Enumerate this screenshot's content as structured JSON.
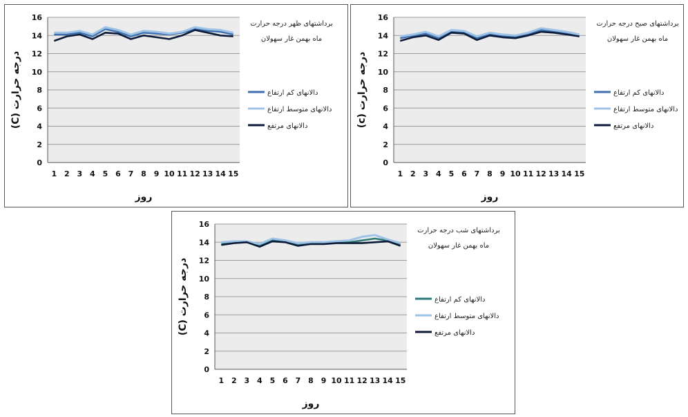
{
  "chart_data": [
    {
      "type": "line",
      "title_lines": [
        "برداشتهای ظهر درجه حرارت",
        "ماه بهمن غار سهولان"
      ],
      "xlabel": "روز",
      "ylabel": "(C) درجه حرارت",
      "ylim": [
        0,
        16
      ],
      "yticks": [
        0,
        2,
        4,
        6,
        8,
        10,
        12,
        14,
        16
      ],
      "categories": [
        "1",
        "2",
        "3",
        "4",
        "5",
        "6",
        "7",
        "8",
        "9",
        "10",
        "11",
        "12",
        "13",
        "14",
        "15"
      ],
      "grid": true,
      "legend_position": "right",
      "series": [
        {
          "name": "دالانهای کم ارتفاع",
          "color": "#3d6fae",
          "values": [
            14.1,
            14.1,
            14.3,
            13.9,
            14.7,
            14.4,
            13.9,
            14.3,
            14.2,
            14.1,
            14.3,
            14.7,
            14.5,
            14.4,
            14.1
          ]
        },
        {
          "name": "دالانهای متوسط ارتفاع",
          "color": "#9fc3e6",
          "values": [
            14.3,
            14.3,
            14.5,
            14.1,
            14.9,
            14.6,
            14.1,
            14.5,
            14.4,
            14.2,
            14.4,
            14.9,
            14.7,
            14.6,
            14.3
          ]
        },
        {
          "name": "دالانهای مرتفع",
          "color": "#0b1a38",
          "values": [
            13.4,
            13.9,
            14.1,
            13.6,
            14.3,
            14.2,
            13.6,
            14.0,
            13.8,
            13.6,
            14.0,
            14.6,
            14.3,
            14.0,
            13.9
          ]
        }
      ]
    },
    {
      "type": "line",
      "title_lines": [
        "برداشتهای صبح درجه حرارت",
        "ماه بهمن غار سهولان"
      ],
      "xlabel": "روز",
      "ylabel": "(c) درجه حرارت",
      "ylim": [
        0,
        16
      ],
      "yticks": [
        0,
        2,
        4,
        6,
        8,
        10,
        12,
        14,
        16
      ],
      "categories": [
        "1",
        "2",
        "3",
        "4",
        "5",
        "6",
        "7",
        "8",
        "9",
        "10",
        "11",
        "12",
        "13",
        "14",
        "15"
      ],
      "grid": true,
      "legend_position": "right",
      "series": [
        {
          "name": "دالانهای کم ارتفاع",
          "color": "#3d6fae",
          "values": [
            13.7,
            14.0,
            14.2,
            13.7,
            14.4,
            14.3,
            13.7,
            14.1,
            13.9,
            13.8,
            14.1,
            14.6,
            14.4,
            14.2,
            13.9
          ]
        },
        {
          "name": "دالانهای متوسط ارتفاع",
          "color": "#9fc3e6",
          "values": [
            13.9,
            14.1,
            14.4,
            13.9,
            14.6,
            14.5,
            13.9,
            14.3,
            14.1,
            14.0,
            14.3,
            14.8,
            14.6,
            14.4,
            14.1
          ]
        },
        {
          "name": "دالانهای مرتفع",
          "color": "#0b1a38",
          "values": [
            13.4,
            13.8,
            14.0,
            13.5,
            14.3,
            14.2,
            13.5,
            14.0,
            13.8,
            13.7,
            14.0,
            14.4,
            14.3,
            14.1,
            13.9
          ]
        }
      ]
    },
    {
      "type": "line",
      "title_lines": [
        "برداشتهای شب درجه حرارت",
        "ماه بهمن غار سهولان"
      ],
      "xlabel": "روز",
      "ylabel": "(C) درجه حرارت",
      "ylim": [
        0,
        16
      ],
      "yticks": [
        0,
        2,
        4,
        6,
        8,
        10,
        12,
        14,
        16
      ],
      "categories": [
        "1",
        "2",
        "3",
        "4",
        "5",
        "6",
        "7",
        "8",
        "9",
        "10",
        "11",
        "12",
        "13",
        "14",
        "15"
      ],
      "grid": true,
      "legend_position": "right",
      "series": [
        {
          "name": "دالانهای کم ارتفاع",
          "color": "#2a7a78",
          "values": [
            13.9,
            14.0,
            14.0,
            13.7,
            14.2,
            14.1,
            13.8,
            13.9,
            13.9,
            14.0,
            14.0,
            14.2,
            14.4,
            14.2,
            13.8
          ]
        },
        {
          "name": "دالانهای متوسط ارتفاع",
          "color": "#9fc3e6",
          "values": [
            14.0,
            14.1,
            14.1,
            13.8,
            14.4,
            14.2,
            13.9,
            14.0,
            14.0,
            14.1,
            14.2,
            14.6,
            14.8,
            14.3,
            13.9
          ]
        },
        {
          "name": "دالانهای مرتفع",
          "color": "#0b1a38",
          "values": [
            13.7,
            13.9,
            14.0,
            13.5,
            14.1,
            14.0,
            13.6,
            13.8,
            13.8,
            13.9,
            13.9,
            13.9,
            14.0,
            14.1,
            13.6
          ]
        }
      ]
    }
  ]
}
